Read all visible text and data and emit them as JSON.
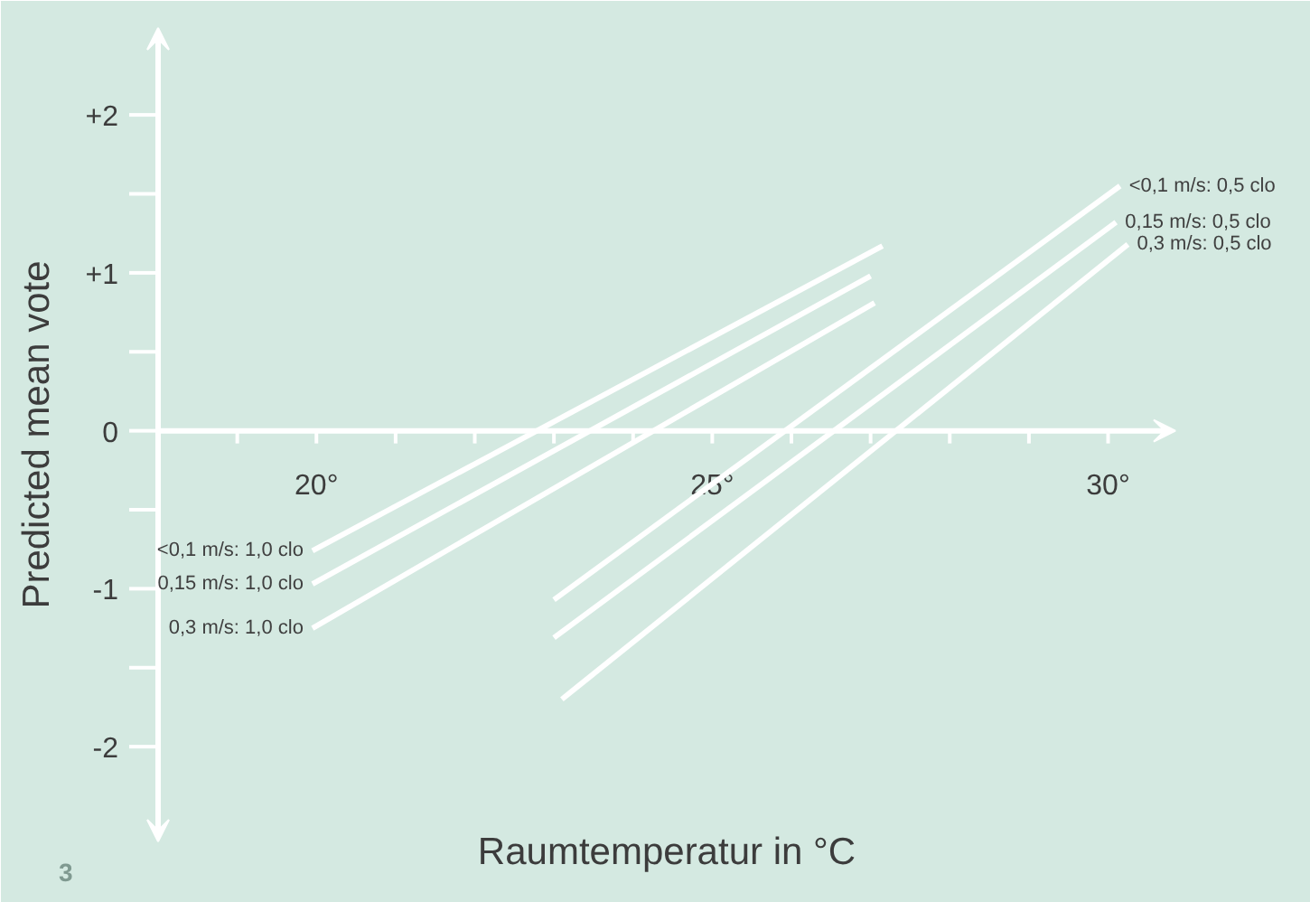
{
  "chart_data": {
    "type": "line",
    "xlabel": "Raumtemperatur in °C",
    "ylabel": "Predicted mean vote",
    "xlim": [
      18,
      30.85
    ],
    "ylim": [
      -2.6,
      2.55
    ],
    "xticks": [
      {
        "value": 19,
        "label": null
      },
      {
        "value": 20,
        "label": "20°"
      },
      {
        "value": 21,
        "label": null
      },
      {
        "value": 22,
        "label": null
      },
      {
        "value": 23,
        "label": null
      },
      {
        "value": 24,
        "label": null
      },
      {
        "value": 25,
        "label": "25°"
      },
      {
        "value": 26,
        "label": null
      },
      {
        "value": 27,
        "label": null
      },
      {
        "value": 28,
        "label": null
      },
      {
        "value": 29,
        "label": null
      },
      {
        "value": 30,
        "label": "30°"
      }
    ],
    "yticks": [
      {
        "value": -2,
        "label": "-2"
      },
      {
        "value": -1.5,
        "label": null
      },
      {
        "value": -1,
        "label": "-1"
      },
      {
        "value": -0.5,
        "label": null
      },
      0,
      {
        "value": 0.5,
        "label": null
      },
      {
        "value": 1,
        "label": "+1"
      },
      {
        "value": 1.5,
        "label": null
      },
      {
        "value": 2,
        "label": "+2"
      }
    ],
    "grid": false,
    "series": [
      {
        "name": "<0,1 m/s: 1,0 clo",
        "color": "#ffffff",
        "x": [
          19.95,
          27.15
        ],
        "values": [
          -0.76,
          1.17
        ]
      },
      {
        "name": "0,15 m/s: 1,0 clo",
        "color": "#ffffff",
        "x": [
          19.95,
          27.0
        ],
        "values": [
          -0.97,
          0.98
        ]
      },
      {
        "name": "0,3 m/s: 1,0 clo",
        "color": "#ffffff",
        "x": [
          19.95,
          27.05
        ],
        "values": [
          -1.25,
          0.81
        ]
      },
      {
        "name": "<0,1 m/s: 0,5 clo",
        "color": "#ffffff",
        "x": [
          23.0,
          30.15
        ],
        "values": [
          -1.07,
          1.55
        ]
      },
      {
        "name": "0,15 m/s: 0,5 clo",
        "color": "#ffffff",
        "x": [
          23.0,
          30.1
        ],
        "values": [
          -1.31,
          1.32
        ]
      },
      {
        "name": "0,3 m/s: 0,5 clo",
        "color": "#ffffff",
        "x": [
          23.1,
          30.25
        ],
        "values": [
          -1.7,
          1.18
        ]
      }
    ],
    "annotations": [
      "3"
    ]
  }
}
